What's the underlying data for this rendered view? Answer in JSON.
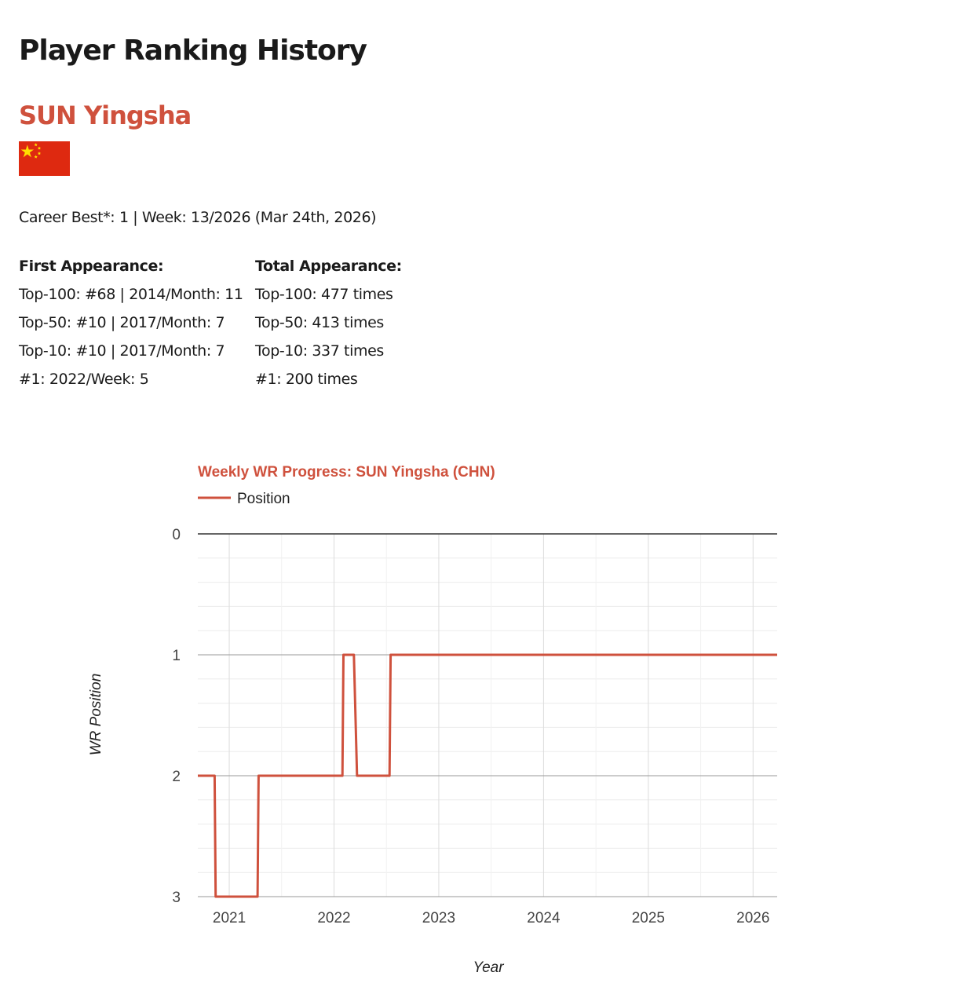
{
  "header": {
    "title": "Player Ranking History"
  },
  "player": {
    "name": "SUN Yingsha",
    "flag_icon": "china-flag-icon",
    "career_best": "Career Best*: 1 | Week: 13/2026 (Mar 24th, 2026)"
  },
  "first_appearance": {
    "heading": "First Appearance:",
    "lines": [
      "Top-100: #68 | 2014/Month: 11",
      "Top-50: #10 | 2017/Month: 7",
      "Top-10: #10 | 2017/Month: 7",
      "#1: 2022/Week: 5"
    ]
  },
  "total_appearance": {
    "heading": "Total Appearance:",
    "lines": [
      "Top-100: 477 times",
      "Top-50: 413 times",
      "Top-10: 337 times",
      "#1: 200 times"
    ]
  },
  "colors": {
    "accent": "#cf513d",
    "flag_red": "#de2910",
    "flag_star": "#ffde00"
  },
  "chart_data": {
    "type": "line",
    "title": "Weekly WR Progress: SUN Yingsha (CHN)",
    "xlabel": "Year",
    "ylabel": "WR Position",
    "legend": {
      "position": "top-left",
      "entries": [
        "Position"
      ]
    },
    "grid": true,
    "step": true,
    "xlim": [
      2020.7,
      2026.23
    ],
    "ylim": [
      0,
      3
    ],
    "y_reversed": true,
    "x_ticks": [
      2021,
      2022,
      2023,
      2024,
      2025,
      2026
    ],
    "x_tick_labels": [
      "2021",
      "2022",
      "2023",
      "2024",
      "2025",
      "2026"
    ],
    "y_ticks": [
      0,
      1,
      2,
      3
    ],
    "y_tick_labels": [
      "0",
      "1",
      "2",
      "3"
    ],
    "series": [
      {
        "name": "Position",
        "color": "#cf513d",
        "points": [
          [
            2020.7,
            2
          ],
          [
            2020.86,
            2
          ],
          [
            2020.87,
            3
          ],
          [
            2021.27,
            3
          ],
          [
            2021.28,
            2
          ],
          [
            2022.08,
            2
          ],
          [
            2022.09,
            1
          ],
          [
            2022.19,
            1
          ],
          [
            2022.22,
            2
          ],
          [
            2022.53,
            2
          ],
          [
            2022.54,
            1
          ],
          [
            2026.23,
            1
          ]
        ]
      }
    ]
  }
}
